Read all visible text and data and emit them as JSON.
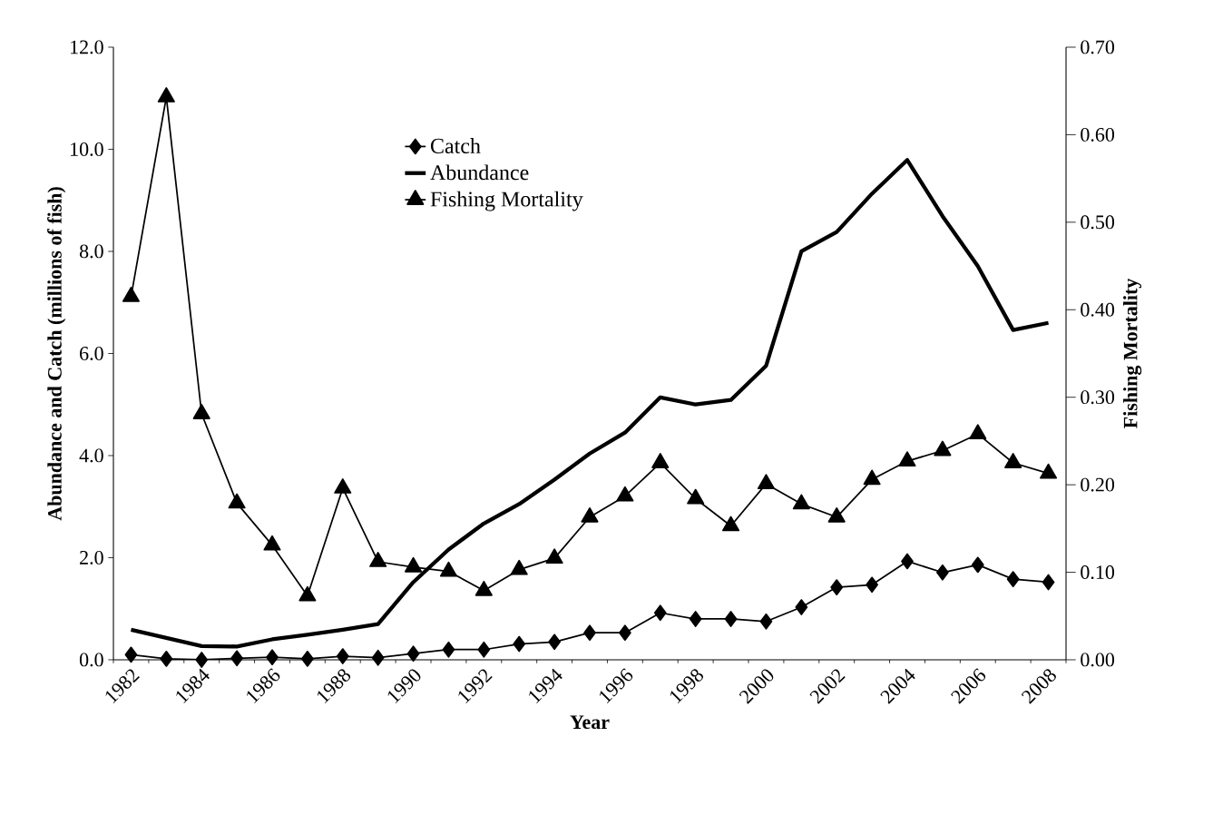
{
  "chart_data": {
    "type": "line",
    "xlabel": "Year",
    "ylabel": "Abundance and Catch (millions of fish)",
    "y2label": "Fishing Mortality",
    "categories": [
      "1982",
      null,
      "1984",
      null,
      "1986",
      null,
      "1988",
      null,
      "1990",
      null,
      "1992",
      null,
      "1994",
      null,
      "1996",
      null,
      "1998",
      null,
      "2000",
      null,
      "2002",
      null,
      "2004",
      null,
      "2006",
      null,
      "2008"
    ],
    "series": [
      {
        "name": "Catch",
        "color": "#000000",
        "marker": "diamond",
        "values": [
          0.1,
          0.02,
          0.0,
          0.03,
          0.05,
          0.02,
          0.07,
          0.04,
          0.12,
          0.2,
          0.2,
          0.31,
          0.35,
          0.53,
          0.53,
          0.92,
          0.8,
          0.8,
          0.75,
          1.03,
          1.42,
          1.47,
          1.93,
          1.71,
          1.86,
          1.58,
          1.52
        ]
      },
      {
        "name": "Abundance",
        "color": "#000000",
        "marker": "none",
        "values": [
          0.59,
          0.43,
          0.27,
          0.26,
          0.4,
          0.49,
          0.59,
          0.7,
          1.52,
          2.16,
          2.67,
          3.05,
          3.53,
          4.04,
          4.45,
          5.14,
          5.0,
          5.09,
          5.76,
          8.0,
          8.38,
          9.13,
          9.79,
          8.69,
          7.71,
          6.46,
          6.6
        ]
      },
      {
        "name": "Fishing Mortality",
        "color": "#000000",
        "marker": "triangle",
        "axis": "y2",
        "values": [
          0.415,
          0.643,
          0.281,
          0.179,
          0.131,
          0.073,
          0.196,
          0.112,
          0.106,
          0.101,
          0.079,
          0.103,
          0.116,
          0.163,
          0.187,
          0.225,
          0.184,
          0.153,
          0.201,
          0.178,
          0.163,
          0.206,
          0.227,
          0.239,
          0.258,
          0.225,
          0.213
        ]
      }
    ],
    "ylim": [
      0,
      12
    ],
    "yticks": [
      {
        "value": 0,
        "label": "0.0"
      },
      {
        "value": 2,
        "label": "2.0"
      },
      {
        "value": 4,
        "label": "4.0"
      },
      {
        "value": 6,
        "label": "6.0"
      },
      {
        "value": 8,
        "label": "8.0"
      },
      {
        "value": 10,
        "label": "10.0"
      },
      {
        "value": 12,
        "label": "12.0"
      }
    ],
    "y2lim": [
      0,
      0.7
    ],
    "y2ticks": [
      {
        "value": 0,
        "label": "0.00"
      },
      {
        "value": 0.1,
        "label": "0.10"
      },
      {
        "value": 0.2,
        "label": "0.20"
      },
      {
        "value": 0.3,
        "label": "0.30"
      },
      {
        "value": 0.4,
        "label": "0.40"
      },
      {
        "value": 0.5,
        "label": "0.50"
      },
      {
        "value": 0.6,
        "label": "0.60"
      },
      {
        "value": 0.7,
        "label": "0.70"
      }
    ],
    "grid": false,
    "legend": "top"
  }
}
